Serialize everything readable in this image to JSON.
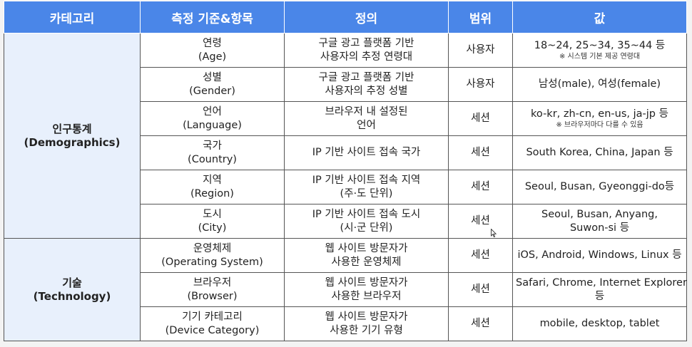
{
  "table": {
    "headers": [
      "카테고리",
      "측정 기준&항목",
      "정의",
      "범위",
      "값"
    ],
    "groups": [
      {
        "category": [
          "인구통계",
          "(Demographics)"
        ],
        "rows": [
          {
            "item": [
              "연령",
              "(Age)"
            ],
            "definition": [
              "구글 광고 플랫폼 기반",
              "사용자의 추정 연령대"
            ],
            "scope": "사용자",
            "value": [
              "18~24, 25~34, 35~44 등"
            ],
            "note": "※ 시스템 기본 제공 연령대"
          },
          {
            "item": [
              "성별",
              "(Gender)"
            ],
            "definition": [
              "구글 광고 플랫폼 기반",
              "사용자의 추정 성별"
            ],
            "scope": "사용자",
            "value": [
              "남성(male), 여성(female)"
            ],
            "note": ""
          },
          {
            "item": [
              "언어",
              "(Language)"
            ],
            "definition": [
              "브라우저 내 설정된",
              "언어"
            ],
            "scope": "세션",
            "value": [
              "ko-kr, zh-cn, en-us, ja-jp 등"
            ],
            "note": "※ 브라우저마다 다를 수 있음"
          },
          {
            "item": [
              "국가",
              "(Country)"
            ],
            "definition": [
              "IP 기반 사이트 접속 국가"
            ],
            "scope": "세션",
            "value": [
              "South Korea, China, Japan 등"
            ],
            "note": ""
          },
          {
            "item": [
              "지역",
              "(Region)"
            ],
            "definition": [
              "IP 기반 사이트 접속 지역",
              "(주·도 단위)"
            ],
            "scope": "세션",
            "value": [
              "Seoul, Busan, Gyeonggi-do등"
            ],
            "note": ""
          },
          {
            "item": [
              "도시",
              "(City)"
            ],
            "definition": [
              "IP 기반 사이트 접속 도시",
              "(시·군 단위)"
            ],
            "scope": "세션",
            "value": [
              "Seoul, Busan, Anyang,",
              "Suwon-si 등"
            ],
            "note": ""
          }
        ]
      },
      {
        "category": [
          "기술",
          "(Technology)"
        ],
        "rows": [
          {
            "item": [
              "운영체제",
              "(Operating System)"
            ],
            "definition": [
              "웹 사이트 방문자가",
              "사용한 운영체제"
            ],
            "scope": "세션",
            "value": [
              "iOS, Android, Windows, Linux 등"
            ],
            "note": ""
          },
          {
            "item": [
              "브라우저",
              "(Browser)"
            ],
            "definition": [
              "웹 사이트 방문자가",
              "사용한 브라우저"
            ],
            "scope": "세션",
            "value": [
              "Safari, Chrome, Internet Explorer",
              "등"
            ],
            "note": ""
          },
          {
            "item": [
              "기기 카테고리",
              "(Device Category)"
            ],
            "definition": [
              "웹 사이트 방문자가",
              "사용한 기기 유형"
            ],
            "scope": "세션",
            "value": [
              "mobile, desktop, tablet"
            ],
            "note": ""
          }
        ]
      }
    ]
  },
  "colors": {
    "header_bg": "#4a86e8",
    "category_bg": "#e8f0fc",
    "border": "#555555"
  },
  "icons": {
    "cursor": "mouse-pointer-icon"
  }
}
